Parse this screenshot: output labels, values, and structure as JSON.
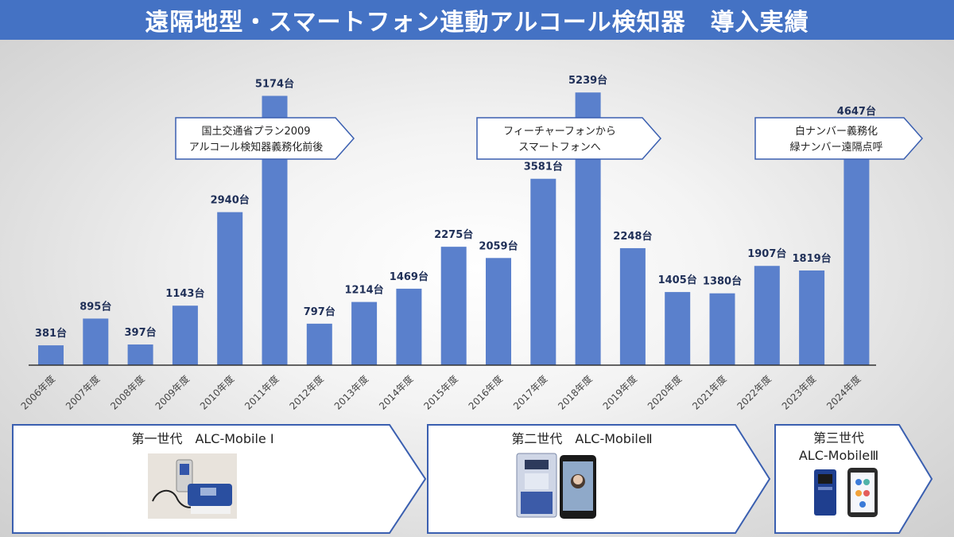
{
  "title": "遠隔地型・スマートフォン連動アルコール検知器　導入実績",
  "chart_data": {
    "type": "bar",
    "categories": [
      "2006年度",
      "2007年度",
      "2008年度",
      "2009年度",
      "2010年度",
      "2011年度",
      "2012年度",
      "2013年度",
      "2014年度",
      "2015年度",
      "2016年度",
      "2017年度",
      "2018年度",
      "2019年度",
      "2020年度",
      "2021年度",
      "2022年度",
      "2023年度",
      "2024年度"
    ],
    "values": [
      381,
      895,
      397,
      1143,
      2940,
      5174,
      797,
      1214,
      1469,
      2275,
      2059,
      3581,
      5239,
      2248,
      1405,
      1380,
      1907,
      1819,
      4647
    ],
    "value_labels": [
      "381台",
      "895台",
      "397台",
      "1143台",
      "2940台",
      "5174台",
      "797台",
      "1214台",
      "1469台",
      "2275台",
      "2059台",
      "3581台",
      "5239台",
      "2248台",
      "1405台",
      "1380台",
      "1907台",
      "1819台",
      "4647台"
    ],
    "ylim": [
      0,
      5900
    ],
    "bar_color": "#5a80cc",
    "label_color": "#1f2f57"
  },
  "callouts": [
    {
      "lines": [
        "国土交通省プラン2009",
        "アルコール検知器義務化前後"
      ]
    },
    {
      "lines": [
        "フィーチャーフォンから",
        "スマートフォンへ"
      ]
    },
    {
      "lines": [
        "白ナンバー義務化",
        "緑ナンバー遠隔点呼"
      ]
    }
  ],
  "generations": [
    {
      "label": "第一世代　ALC-Mobile Ⅰ",
      "image": "alc-mobile-1-device-photo"
    },
    {
      "label": "第二世代　ALC-MobileⅡ",
      "image": "alc-mobile-2-device-photo"
    },
    {
      "line1": "第三世代",
      "line2": "ALC-MobileⅢ",
      "image": "alc-mobile-3-device-photo"
    }
  ],
  "colors": {
    "title_bg": "#4472c4",
    "arrow_border": "#3a5fb0"
  }
}
